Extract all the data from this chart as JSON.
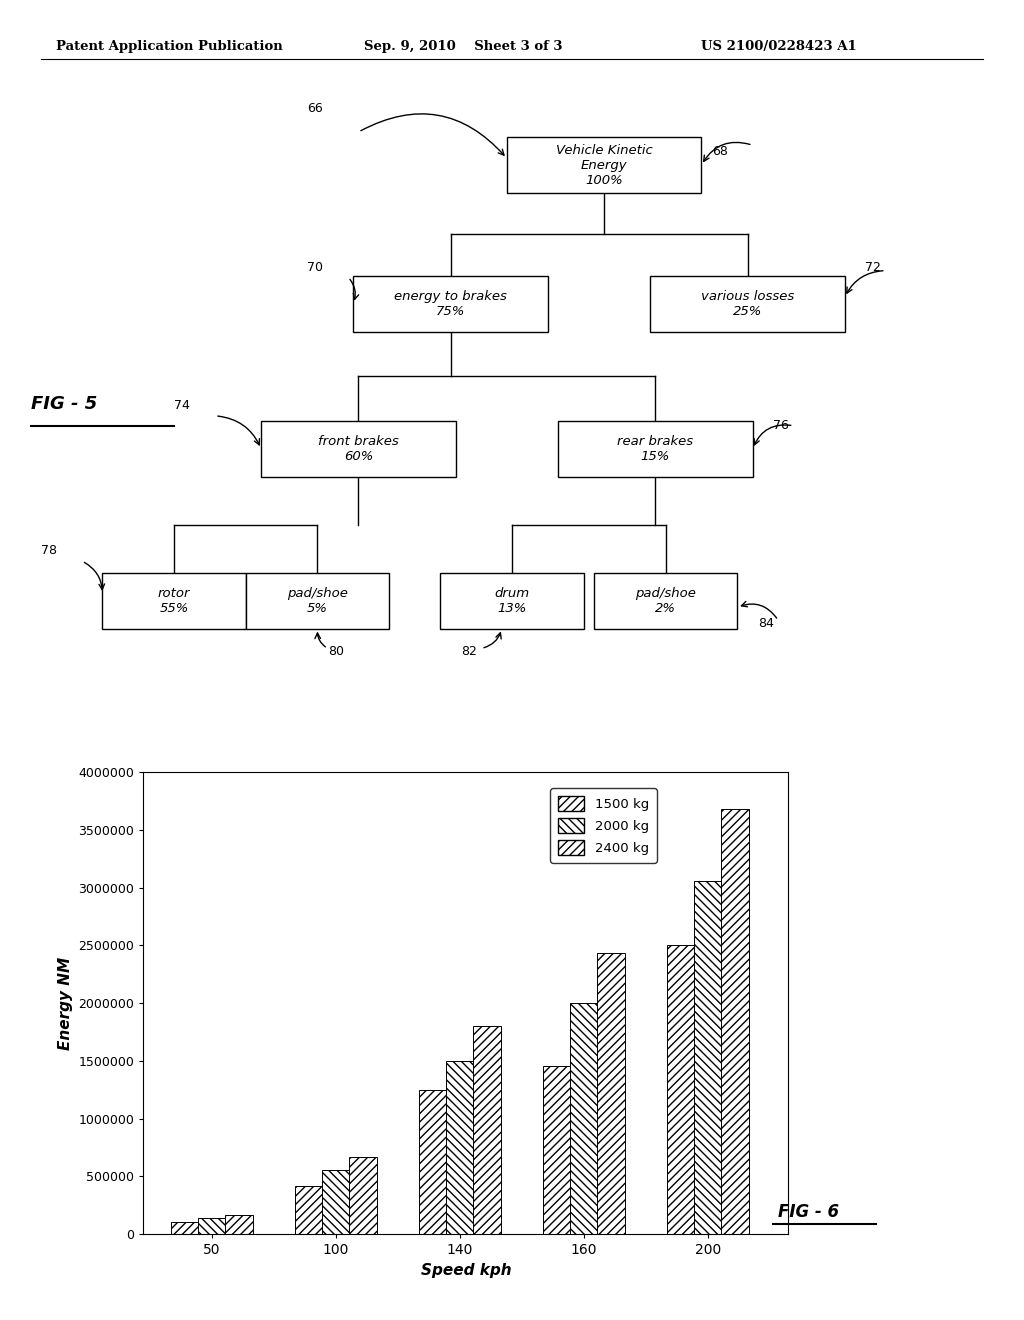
{
  "header_left": "Patent Application Publication",
  "header_center": "Sep. 9, 2010    Sheet 3 of 3",
  "header_right": "US 2100/0228423 A1",
  "fig5_label": "FIG - 5",
  "fig6_label": "FIG - 6",
  "tree": {
    "root_text": "Vehicle Kinetic\nEnergy\n100%",
    "l1_texts": [
      "energy to brakes\n75%",
      "various losses\n25%"
    ],
    "l2_texts": [
      "front brakes\n60%",
      "rear brakes\n15%"
    ],
    "l3_texts": [
      "rotor\n55%",
      "pad/shoe\n5%",
      "drum\n13%",
      "pad/shoe\n2%"
    ],
    "refs": {
      "66": "66",
      "68": "68",
      "70": "70",
      "72": "72",
      "74": "74",
      "76": "76",
      "78": "78",
      "80": "80",
      "82": "82",
      "84": "84"
    }
  },
  "bar_chart": {
    "speeds": [
      50,
      100,
      140,
      160,
      200
    ],
    "series_1500": [
      104167,
      416667,
      1250000,
      1458333,
      2500000
    ],
    "series_2000": [
      138889,
      555556,
      1500000,
      2000000,
      3055556
    ],
    "series_2400": [
      166667,
      666667,
      1805556,
      2430556,
      3680556
    ],
    "xlabel": "Speed kph",
    "ylabel": "Energy NM",
    "ylim_max": 4000000,
    "yticks": [
      0,
      500000,
      1000000,
      1500000,
      2000000,
      2500000,
      3000000,
      3500000,
      4000000
    ],
    "legend_labels": [
      "1500 kg",
      "2000 kg",
      "2400 kg"
    ],
    "bar_width": 0.22
  },
  "bg_color": "#ffffff"
}
